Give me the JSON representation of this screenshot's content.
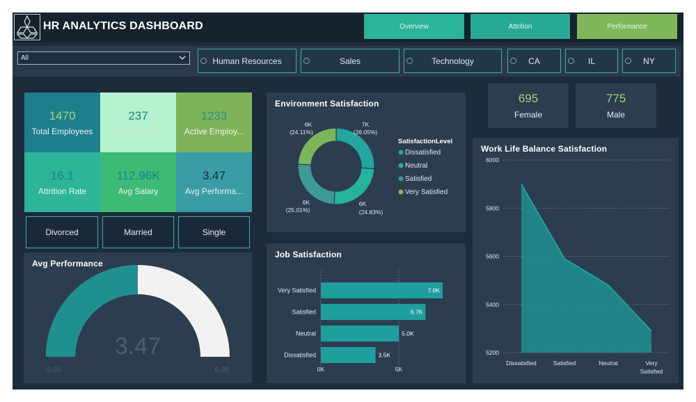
{
  "header": {
    "title": "HR ANALYTICS DASHBOARD",
    "nav": [
      "Overview",
      "Attrition",
      "Performance"
    ],
    "colors": {
      "overview": "#2ab49a",
      "attrition": "#27a996",
      "performance": "#7fb85a"
    }
  },
  "filters": {
    "dropdown_value": "All",
    "slicers": [
      "Human Resources",
      "Sales",
      "Technology",
      "CA",
      "IL",
      "NY"
    ]
  },
  "kpis": [
    {
      "value": "1470",
      "label": "Total Employees"
    },
    {
      "value": "237",
      "label": "Total Attrition"
    },
    {
      "value": "1233",
      "label": "Active Employ..."
    },
    {
      "value": "16.1",
      "label": "Attrition Rate"
    },
    {
      "value": "112.96K",
      "label": "Avg Salary"
    },
    {
      "value": "3.47",
      "label": "Avg Performa..."
    }
  ],
  "marital": [
    "Divorced",
    "Married",
    "Single"
  ],
  "gender": [
    {
      "value": "695",
      "label": "Female"
    },
    {
      "value": "775",
      "label": "Male"
    }
  ],
  "avg_performance": {
    "title": "Avg Performance",
    "value": "3.47",
    "min_label": "0.00",
    "max_label": "6.95",
    "fraction": 0.5
  },
  "chart_data": [
    {
      "type": "pie",
      "title": "Environment Satisfaction",
      "legend_title": "SatisfactionLevel",
      "categories": [
        "Dissatisfied",
        "Neutral",
        "Satisfied",
        "Very Satisfied"
      ],
      "values": [
        7,
        6,
        6,
        6
      ],
      "data_labels": [
        "7K",
        "6K",
        "6K",
        "6K"
      ],
      "percent_labels": [
        "(26.05%)",
        "(24.83%)",
        "(25.01%)",
        "(24.11%)"
      ],
      "percents": [
        26.05,
        24.83,
        25.01,
        24.11
      ],
      "colors": [
        "#23a6a0",
        "#25b49a",
        "#3e9a98",
        "#7db55c"
      ],
      "legend_placement": "right"
    },
    {
      "type": "bar",
      "orientation": "horizontal",
      "title": "Job Satisfaction",
      "categories": [
        "Very Satisfied",
        "Satisfied",
        "Neutral",
        "Dissatisfied"
      ],
      "values": [
        7.8,
        6.7,
        5.0,
        3.5
      ],
      "data_labels": [
        "7.8K",
        "6.7K",
        "5.0K",
        "3.5K"
      ],
      "x_ticks": [
        "0K",
        "5K"
      ],
      "xlim": [
        0,
        7.8
      ],
      "color": "#1f9e9e"
    },
    {
      "type": "area",
      "title": "Work Life Balance Satisfaction",
      "categories": [
        "Dissatisfied",
        "Satisfied",
        "Neutral",
        "Very Satisfied"
      ],
      "values": [
        5900,
        5590,
        5480,
        5290
      ],
      "y_ticks": [
        "6000",
        "5800",
        "5600",
        "5400",
        "5200"
      ],
      "ylim": [
        5200,
        6000
      ],
      "grid": true,
      "color": "#1f8c8c"
    }
  ]
}
